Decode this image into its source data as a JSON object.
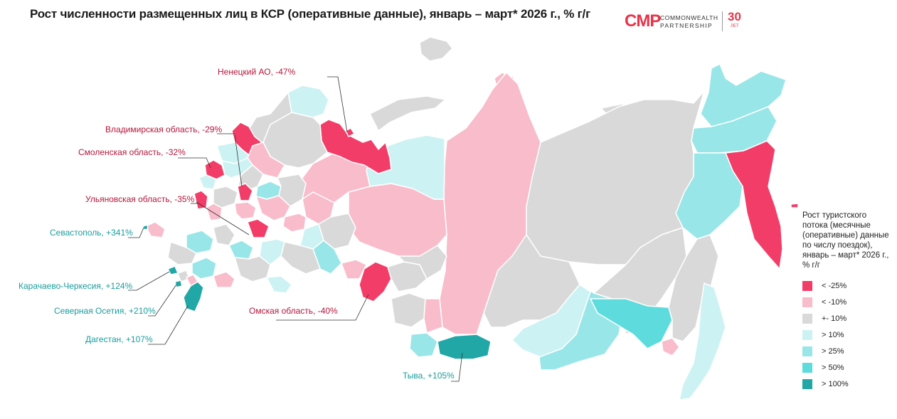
{
  "title": "Рост численности размещенных лиц в КСР (оперативные данные), январь – март* 2026 г., % г/г",
  "logo": {
    "mark": "CMP",
    "line1": "COMMONWEALTH",
    "line2": "PARTNERSHIP",
    "years": "30",
    "years_word": "ЛЕТ"
  },
  "colors": {
    "lt_neg25": "#f23d68",
    "lt_neg10": "#f9bccb",
    "neutral": "#d9d9d9",
    "gt10": "#cdf2f3",
    "gt25": "#98e6e8",
    "gt50": "#5edbdc",
    "gt100": "#22a7a7"
  },
  "labels": [
    {
      "name": "Ненецкий АО",
      "value": "-47%",
      "text": "Ненецкий АО, -47%",
      "color_class": "red"
    },
    {
      "name": "Владимирская область",
      "value": "-29%",
      "text": "Владимирская область, -29%",
      "color_class": "red"
    },
    {
      "name": "Смоленская область",
      "value": "-32%",
      "text": "Смоленская область, -32%",
      "color_class": "red"
    },
    {
      "name": "Ульяновская область",
      "value": "-35%",
      "text": "Ульяновская область, -35%",
      "color_class": "red"
    },
    {
      "name": "Севастополь",
      "value": "+341%",
      "text": "Севастополь, +341%",
      "color_class": "teal"
    },
    {
      "name": "Карачаево-Черкесия",
      "value": "+124%",
      "text": "Карачаево-Черкесия, +124%",
      "color_class": "teal"
    },
    {
      "name": "Северная Осетия",
      "value": "+210%",
      "text": "Северная Осетия, +210%",
      "color_class": "teal"
    },
    {
      "name": "Дагестан",
      "value": "+107%",
      "text": "Дагестан, +107%",
      "color_class": "teal"
    },
    {
      "name": "Омская область",
      "value": "-40%",
      "text": "Омская область, -40%",
      "color_class": "red"
    },
    {
      "name": "Тыва",
      "value": "+105%",
      "text": "Тыва, +105%",
      "color_class": "teal"
    }
  ],
  "legend": {
    "title": "Рост туристского потока (месячные (оперативные) данные по числу поездок), январь – март* 2026 г., % г/г",
    "items": [
      {
        "label": "< -25%",
        "color": "#f23d68"
      },
      {
        "label": "< -10%",
        "color": "#f9bccb"
      },
      {
        "label": "+- 10%",
        "color": "#d9d9d9"
      },
      {
        "label": "> 10%",
        "color": "#cdf2f3"
      },
      {
        "label": "> 25%",
        "color": "#98e6e8"
      },
      {
        "label": "> 50%",
        "color": "#5edbdc"
      },
      {
        "label": "> 100%",
        "color": "#22a7a7"
      }
    ]
  }
}
